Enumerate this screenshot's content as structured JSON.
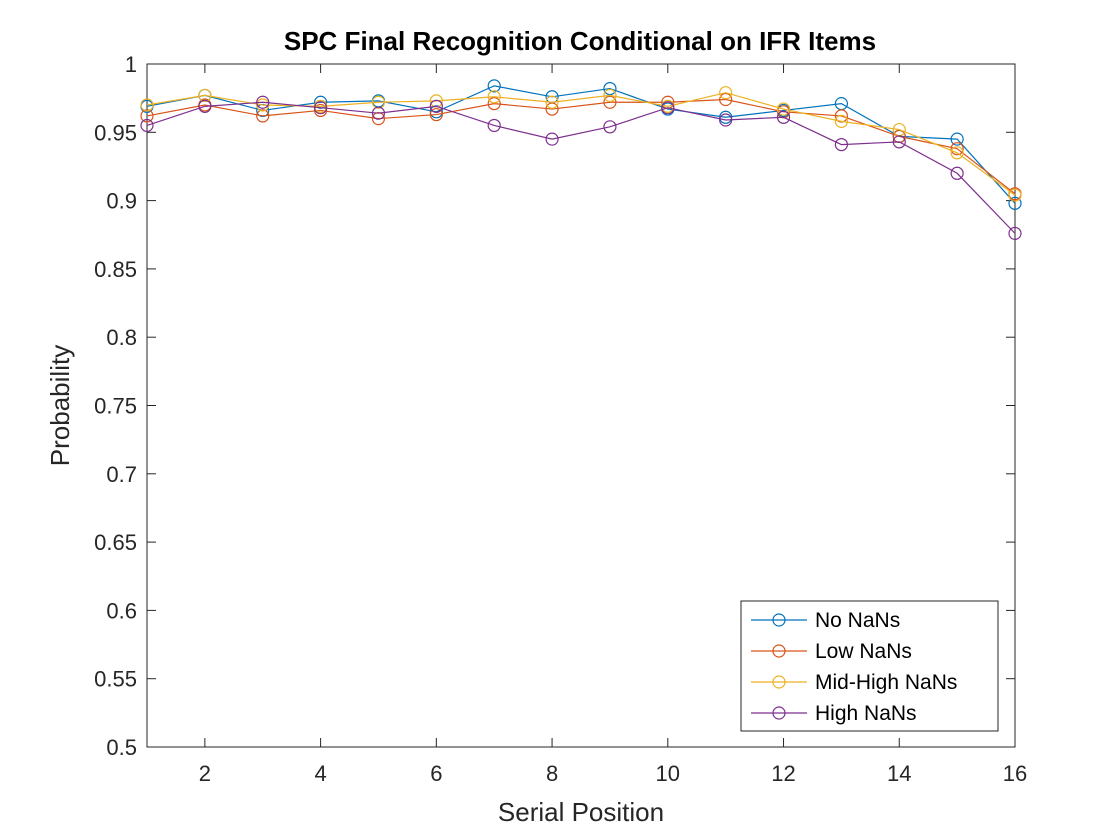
{
  "chart_data": {
    "type": "line",
    "title": "SPC Final Recognition Conditional on IFR Items",
    "xlabel": "Serial Position",
    "ylabel": "Probability",
    "xlim": [
      1,
      16
    ],
    "ylim": [
      0.5,
      1
    ],
    "xticks": [
      "2",
      "4",
      "6",
      "8",
      "10",
      "12",
      "14",
      "16"
    ],
    "xtick_values": [
      2,
      4,
      6,
      8,
      10,
      12,
      14,
      16
    ],
    "yticks": [
      "0.5",
      "0.55",
      "0.6",
      "0.65",
      "0.7",
      "0.75",
      "0.8",
      "0.85",
      "0.9",
      "0.95",
      "1"
    ],
    "ytick_values": [
      0.5,
      0.55,
      0.6,
      0.65,
      0.7,
      0.75,
      0.8,
      0.85,
      0.9,
      0.95,
      1
    ],
    "grid": false,
    "legend_position": "bottom-right",
    "marker": "open-circle",
    "x": [
      1,
      2,
      3,
      4,
      5,
      6,
      7,
      8,
      9,
      10,
      11,
      12,
      13,
      14,
      15,
      16
    ],
    "series": [
      {
        "name": "No NaNs",
        "color": "#0072BD",
        "values": [
          0.969,
          0.977,
          0.966,
          0.972,
          0.973,
          0.965,
          0.984,
          0.976,
          0.982,
          0.967,
          0.961,
          0.966,
          0.971,
          0.947,
          0.945,
          0.898
        ]
      },
      {
        "name": "Low NaNs",
        "color": "#D95319",
        "values": [
          0.962,
          0.97,
          0.962,
          0.966,
          0.96,
          0.963,
          0.971,
          0.967,
          0.972,
          0.972,
          0.974,
          0.965,
          0.962,
          0.947,
          0.938,
          0.905
        ]
      },
      {
        "name": "Mid-High NaNs",
        "color": "#EDB120",
        "values": [
          0.97,
          0.977,
          0.97,
          0.969,
          0.972,
          0.973,
          0.976,
          0.972,
          0.977,
          0.969,
          0.979,
          0.967,
          0.958,
          0.952,
          0.935,
          0.904
        ]
      },
      {
        "name": "High NaNs",
        "color": "#7E2F8E",
        "values": [
          0.955,
          0.969,
          0.972,
          0.968,
          0.964,
          0.969,
          0.955,
          0.945,
          0.954,
          0.968,
          0.959,
          0.961,
          0.941,
          0.943,
          0.92,
          0.876
        ]
      }
    ]
  }
}
